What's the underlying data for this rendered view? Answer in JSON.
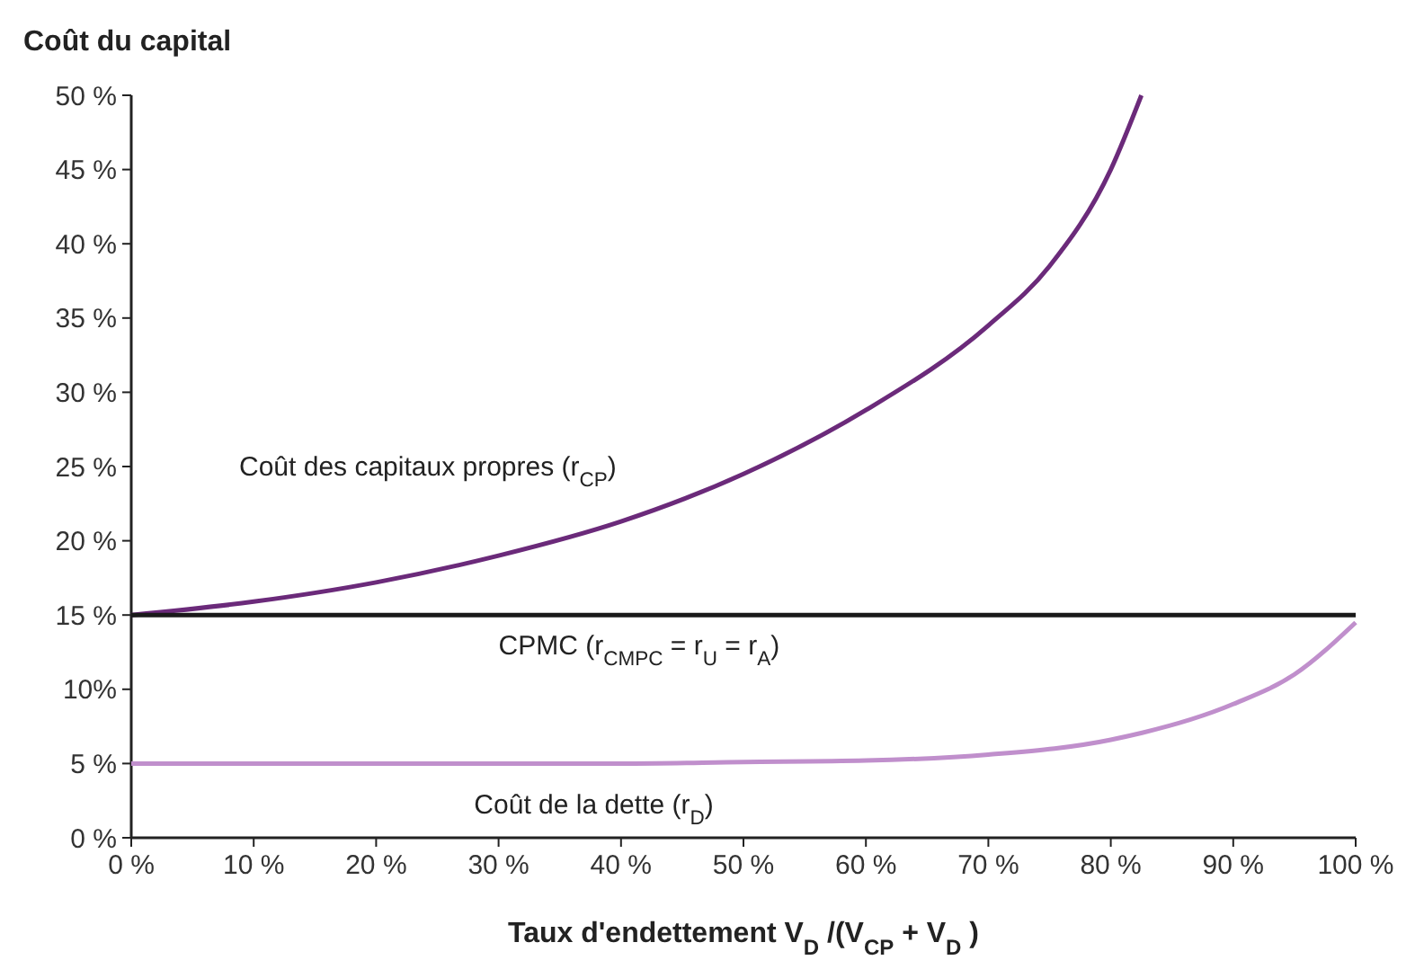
{
  "chart_data": {
    "type": "line",
    "ylabel": "Coût du capital",
    "xlabel": "Taux d'endettement V$_{D}$ /(V$_{CP}$ + V$_{D}$ )",
    "xlim": [
      0,
      100
    ],
    "ylim": [
      0,
      50
    ],
    "xticks": [
      {
        "value": 0,
        "label": "0 %"
      },
      {
        "value": 10,
        "label": "10 %"
      },
      {
        "value": 20,
        "label": "20 %"
      },
      {
        "value": 30,
        "label": "30 %"
      },
      {
        "value": 40,
        "label": "40 %"
      },
      {
        "value": 50,
        "label": "50 %"
      },
      {
        "value": 60,
        "label": "60 %"
      },
      {
        "value": 70,
        "label": "70 %"
      },
      {
        "value": 80,
        "label": "80 %"
      },
      {
        "value": 90,
        "label": "90 %"
      },
      {
        "value": 100,
        "label": "100 %"
      }
    ],
    "yticks": [
      {
        "value": 0,
        "label": "0 %"
      },
      {
        "value": 5,
        "label": "5 %"
      },
      {
        "value": 10,
        "label": "10%"
      },
      {
        "value": 15,
        "label": "15 %"
      },
      {
        "value": 20,
        "label": "20 %"
      },
      {
        "value": 25,
        "label": "25 %"
      },
      {
        "value": 30,
        "label": "30 %"
      },
      {
        "value": 35,
        "label": "35 %"
      },
      {
        "value": 40,
        "label": "40 %"
      },
      {
        "value": 45,
        "label": "45 %"
      },
      {
        "value": 50,
        "label": "50 %"
      }
    ],
    "grid": false,
    "marker": "none",
    "line_style": "solid",
    "series": [
      {
        "name": "Coût des capitaux propres (r$_{CP}$)",
        "color": "#6b2a7a",
        "x": [
          0,
          10,
          20,
          30,
          40,
          50,
          60,
          70,
          75,
          80,
          82.5
        ],
        "values": [
          15,
          15.9,
          17.2,
          19,
          21.3,
          24.5,
          28.8,
          34.5,
          38.5,
          45,
          50
        ]
      },
      {
        "name": "CPMC (r$_{CMPC}$ = r$_{U}$ = r$_{A}$)",
        "color": "#1a1a1a",
        "x": [
          0,
          100
        ],
        "values": [
          15,
          15
        ]
      },
      {
        "name": "Coût de la dette (r$_{D}$)",
        "color": "#c08fcc",
        "x": [
          0,
          10,
          20,
          30,
          40,
          50,
          60,
          70,
          80,
          90,
          95,
          100
        ],
        "values": [
          5,
          5,
          5,
          5,
          5,
          5.1,
          5.2,
          5.6,
          6.6,
          9,
          11,
          14.5
        ]
      }
    ]
  }
}
